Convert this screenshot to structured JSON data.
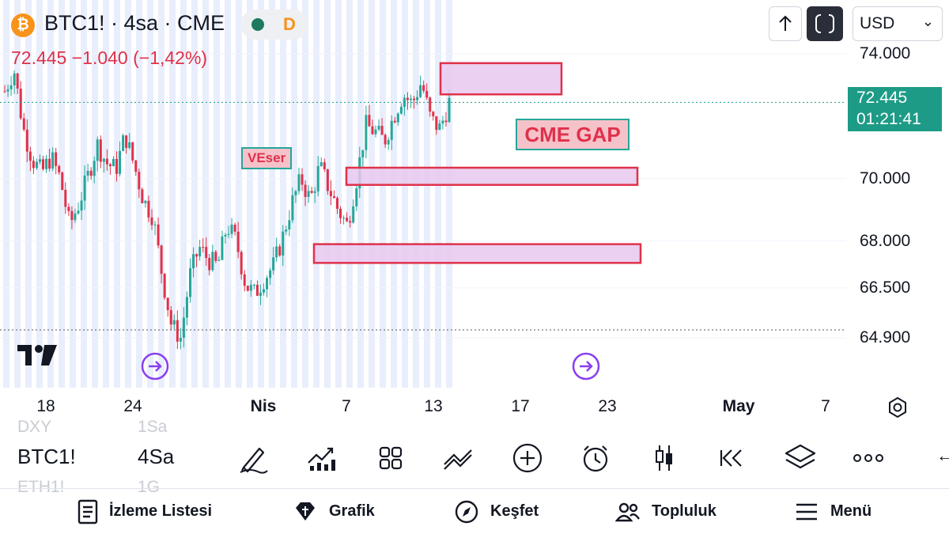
{
  "header": {
    "title": "BTC1! · 4sa · CME",
    "status_letter": "D",
    "price_line": "72.445 −1.040 (−1,42%)",
    "currency": "USD",
    "currency_chevron": "⌄"
  },
  "icons": [
    "bitcoin-icon",
    "arrow-up-icon",
    "fullscreen-icon",
    "chevron-down-icon",
    "tradingview-logo",
    "settings-icon",
    "draw-pen-icon",
    "indicators-icon",
    "templates-icon",
    "line-tools-icon",
    "add-icon",
    "alert-icon",
    "candles-icon",
    "replay-icon",
    "layers-icon",
    "more-icon",
    "watchlist-icon",
    "chart-icon",
    "explore-icon",
    "community-icon",
    "menu-icon"
  ],
  "colors": {
    "up": "#26a69a",
    "down": "#e0314a",
    "session": "#e8eefc",
    "zone_fill": "#e8c8ef",
    "zone_border": "#e0314a",
    "current_price_bg": "#1d9b86"
  },
  "price_axis": [
    "74.000",
    "70.000",
    "68.000",
    "66.500",
    "64.900"
  ],
  "current_price": {
    "price": "72.445",
    "countdown": "01:21:41"
  },
  "time_axis": [
    {
      "label": "18",
      "bold": false
    },
    {
      "label": "24",
      "bold": false
    },
    {
      "label": "Nis",
      "bold": true
    },
    {
      "label": "7",
      "bold": false
    },
    {
      "label": "13",
      "bold": false
    },
    {
      "label": "17",
      "bold": false
    },
    {
      "label": "23",
      "bold": false
    },
    {
      "label": "May",
      "bold": true
    },
    {
      "label": "7",
      "bold": false
    }
  ],
  "annotations": {
    "veser": "VEser",
    "cme_gap": "CME GAP"
  },
  "symbol_row": {
    "symbol": "BTC1!",
    "interval": "4Sa",
    "ghost_above_symbol": "DXY",
    "ghost_above_interval": "1Sa",
    "ghost_below_symbol": "ETH1!",
    "ghost_below_interval": "1G"
  },
  "toolbar_partial_glyph": "←",
  "nav": [
    "İzleme Listesi",
    "Grafik",
    "Keşfet",
    "Topluluk",
    "Menü"
  ],
  "chart_data": {
    "type": "candlestick",
    "symbol": "BTC1!",
    "timeframe": "4sa",
    "close_price": 72445,
    "change": -1040,
    "change_pct": -1.42,
    "y_ticks": [
      74000,
      70000,
      68000,
      66500,
      64900
    ],
    "x_ticks": [
      "18",
      "24",
      "Nis",
      "7",
      "13",
      "17",
      "23",
      "May",
      "7"
    ],
    "close_path": [
      72800,
      73500,
      71600,
      70600,
      70200,
      70700,
      70000,
      68500,
      69200,
      70100,
      71100,
      70500,
      70300,
      71400,
      70400,
      69300,
      68800,
      66900,
      65300,
      64900,
      66900,
      67800,
      67400,
      67200,
      68500,
      68000,
      66600,
      66300,
      66800,
      67200,
      68100,
      69200,
      70000,
      69300,
      70400,
      69700,
      69000,
      68500,
      70000,
      71700,
      71500,
      71200,
      72000,
      72700,
      72400,
      73100,
      71900,
      71600,
      72445
    ],
    "gap_zones": [
      {
        "low": 72700,
        "high": 73700
      },
      {
        "low": 69800,
        "high": 70350
      },
      {
        "low": 67300,
        "high": 67900
      }
    ]
  }
}
